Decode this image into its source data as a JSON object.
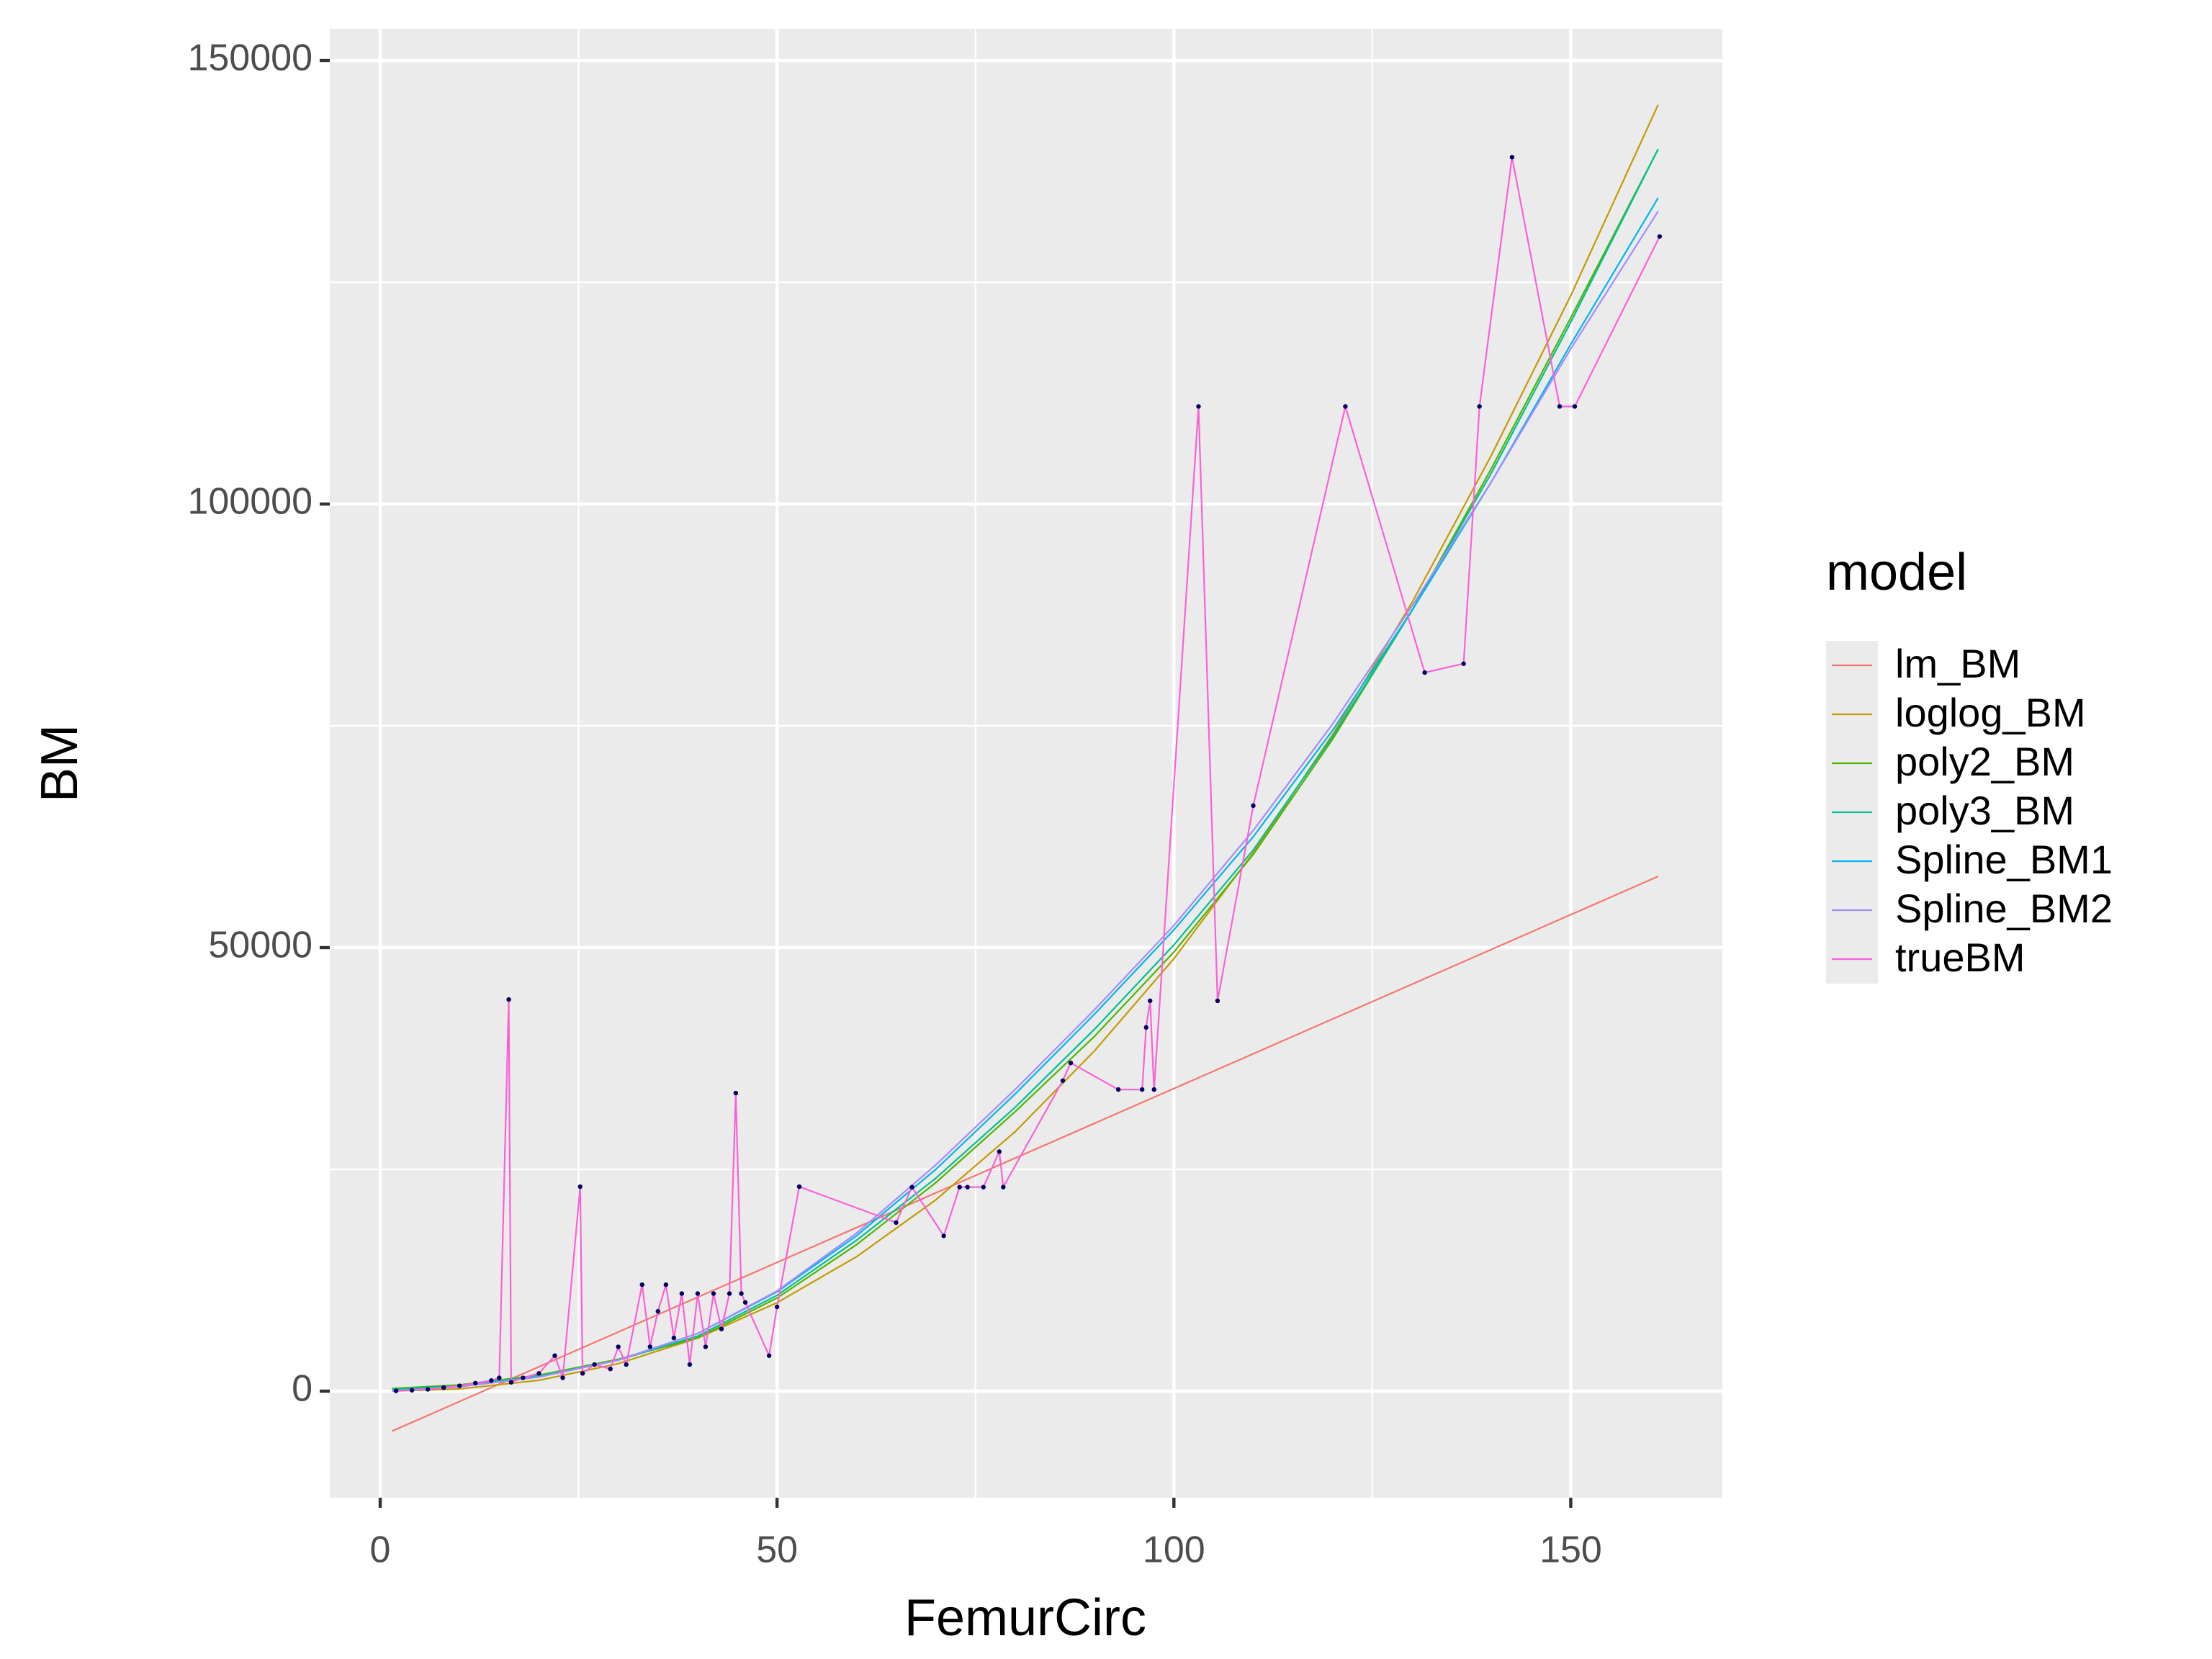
{
  "chart_data": {
    "type": "line",
    "x_label": "FemurCirc",
    "y_label": "BM",
    "legend_title": "model",
    "legend": "right",
    "xlim": [
      -6.35,
      169.1
    ],
    "ylim": [
      -12013,
      153571
    ],
    "xticks": [
      0,
      50,
      100,
      150
    ],
    "yticks": [
      0,
      50000,
      100000,
      150000
    ],
    "x_minor_grid": [
      25,
      75,
      125
    ],
    "y_minor_grid": [
      25000,
      75000,
      125000
    ],
    "grid": true,
    "point_color": "#000066",
    "series": [
      {
        "name": "lm_BM",
        "color": "#F8766D",
        "x": [
          1.5,
          10,
          20,
          30,
          40,
          50,
          60,
          70,
          80,
          90,
          100,
          110,
          120,
          130,
          140,
          150,
          161
        ],
        "values": [
          -4500,
          -1170,
          2750,
          6670,
          10590,
          14510,
          18430,
          22350,
          26270,
          30190,
          34110,
          38030,
          41950,
          45870,
          49790,
          53710,
          58020
        ]
      },
      {
        "name": "loglog_BM",
        "color": "#C49A00",
        "x": [
          1.5,
          10,
          20,
          30,
          40,
          50,
          60,
          70,
          80,
          90,
          100,
          110,
          120,
          130,
          140,
          150,
          161
        ],
        "values": [
          3,
          250,
          1223,
          3096,
          5980,
          9970,
          15140,
          21560,
          29250,
          38360,
          48750,
          60690,
          74030,
          88900,
          105500,
          123500,
          145000
        ]
      },
      {
        "name": "poly2_BM",
        "color": "#53B400",
        "x": [
          1.5,
          10,
          20,
          30,
          40,
          50,
          60,
          70,
          80,
          90,
          100,
          110,
          120,
          130,
          140,
          150,
          161
        ],
        "values": [
          300,
          700,
          1800,
          3600,
          6000,
          10500,
          16500,
          23500,
          31500,
          40000,
          49500,
          60500,
          73500,
          88000,
          104000,
          121000,
          140000
        ]
      },
      {
        "name": "poly3_BM",
        "color": "#00C094",
        "x": [
          1.5,
          10,
          20,
          30,
          40,
          50,
          60,
          70,
          80,
          90,
          100,
          110,
          120,
          130,
          140,
          150,
          161
        ],
        "values": [
          200,
          600,
          1700,
          3500,
          6200,
          10800,
          17000,
          24000,
          32000,
          40800,
          50300,
          61000,
          73800,
          88000,
          103500,
          120500,
          140000
        ]
      },
      {
        "name": "Spline_BM1",
        "color": "#00B6EB",
        "x": [
          1.5,
          10,
          20,
          30,
          40,
          50,
          60,
          70,
          80,
          90,
          100,
          110,
          120,
          130,
          140,
          150,
          161
        ],
        "values": [
          0,
          500,
          1600,
          3500,
          6500,
          11200,
          17500,
          25000,
          33500,
          42500,
          52000,
          62500,
          74500,
          88000,
          102500,
          118000,
          134500
        ]
      },
      {
        "name": "Spline_BM2",
        "color": "#A58AFF",
        "x": [
          1.5,
          10,
          20,
          30,
          40,
          50,
          60,
          70,
          80,
          90,
          100,
          110,
          120,
          130,
          140,
          150,
          161
        ],
        "values": [
          0,
          500,
          1600,
          3500,
          6500,
          11300,
          17800,
          25500,
          34000,
          43000,
          52500,
          63200,
          75200,
          88500,
          102500,
          117500,
          133000
        ]
      },
      {
        "name": "trueBM",
        "color": "#FB61D7",
        "points": true,
        "x": [
          2,
          4,
          6,
          8,
          10,
          12,
          14,
          15,
          16.2,
          16.5,
          18,
          20,
          22,
          23,
          25.2,
          25.5,
          27,
          29,
          30,
          31,
          33,
          34,
          35,
          36,
          37,
          38,
          39,
          40,
          41,
          42,
          43,
          44,
          44.8,
          45.5,
          46,
          49,
          50,
          52.8,
          65,
          67,
          71,
          73,
          74,
          76,
          78,
          78.5,
          86,
          87,
          93,
          96,
          96.5,
          97,
          97.5,
          103.1,
          105.5,
          110,
          121.6,
          131.6,
          136.5,
          138.5,
          142.6,
          148.6,
          150.5,
          161.2
        ],
        "values": [
          30,
          100,
          200,
          400,
          600,
          900,
          1200,
          1500,
          44150,
          1000,
          1500,
          2000,
          4000,
          1500,
          23050,
          2000,
          3000,
          2500,
          5000,
          3000,
          12000,
          5000,
          9000,
          12000,
          6000,
          11000,
          3000,
          11000,
          5000,
          11000,
          7000,
          11000,
          33600,
          11000,
          10000,
          4000,
          9500,
          23050,
          19000,
          23000,
          17500,
          23000,
          23000,
          23000,
          27000,
          23000,
          35000,
          37000,
          34000,
          34000,
          41000,
          44000,
          34000,
          111000,
          44000,
          66000,
          111000,
          81000,
          82000,
          111000,
          139100,
          111000,
          111000,
          130160
        ]
      }
    ]
  }
}
